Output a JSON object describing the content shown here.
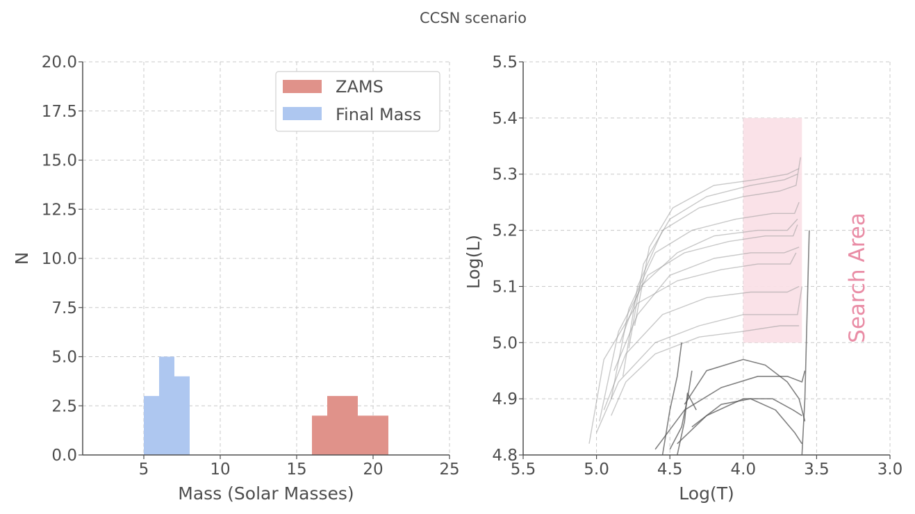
{
  "suptitle": "CCSN scenario",
  "colors": {
    "zams": "#e0928a",
    "final_mass": "#aec7f0",
    "search_area": "#f9dfe6",
    "search_area_text": "#e98ca5",
    "track": "#9a9a9a",
    "track_dark": "#555555"
  },
  "chart_data": [
    {
      "type": "bar",
      "subtype": "histogram",
      "xlabel": "Mass (Solar Masses)",
      "ylabel": "N",
      "xlim": [
        1,
        25
      ],
      "ylim": [
        0,
        20
      ],
      "xticks": [
        5,
        10,
        15,
        20,
        25
      ],
      "xtick_labels": [
        "5",
        "10",
        "15",
        "20",
        "25"
      ],
      "yticks": [
        0,
        2.5,
        5,
        7.5,
        10,
        12.5,
        15,
        17.5,
        20
      ],
      "ytick_labels": [
        "0.0",
        "2.5",
        "5.0",
        "7.5",
        "10.0",
        "12.5",
        "15.0",
        "17.5",
        "20.0"
      ],
      "grid": true,
      "legend": "top-right",
      "series": [
        {
          "name": "ZAMS",
          "color": "#e0928a",
          "bins": [
            {
              "x0": 16,
              "x1": 17,
              "count": 2
            },
            {
              "x0": 17,
              "x1": 18,
              "count": 3
            },
            {
              "x0": 18,
              "x1": 19,
              "count": 3
            },
            {
              "x0": 19,
              "x1": 20,
              "count": 2
            },
            {
              "x0": 20,
              "x1": 21,
              "count": 2
            }
          ]
        },
        {
          "name": "Final Mass",
          "color": "#aec7f0",
          "bins": [
            {
              "x0": 5,
              "x1": 6,
              "count": 3
            },
            {
              "x0": 6,
              "x1": 7,
              "count": 5
            },
            {
              "x0": 7,
              "x1": 8,
              "count": 4
            }
          ]
        }
      ]
    },
    {
      "type": "line",
      "xlabel": "Log(T)",
      "ylabel": "Log(L)",
      "xlim": [
        5.5,
        3.0
      ],
      "ylim": [
        4.8,
        5.5
      ],
      "x_inverted": true,
      "xticks": [
        5.5,
        5.0,
        4.5,
        4.0,
        3.5,
        3.0
      ],
      "xtick_labels": [
        "5.5",
        "5.0",
        "4.5",
        "4.0",
        "3.5",
        "3.0"
      ],
      "yticks": [
        4.8,
        4.9,
        5.0,
        5.1,
        5.2,
        5.3,
        5.4,
        5.5
      ],
      "ytick_labels": [
        "4.8",
        "4.9",
        "5.0",
        "5.1",
        "5.2",
        "5.3",
        "5.4",
        "5.5"
      ],
      "grid": true,
      "search_area": {
        "x_range": [
          4.0,
          3.6
        ],
        "y_range": [
          5.0,
          5.4
        ],
        "label": "Search Area"
      },
      "series": [
        {
          "x": [
            5.05,
            4.95,
            4.72,
            4.45,
            4.15,
            3.9,
            3.68,
            3.64
          ],
          "y": [
            4.82,
            4.97,
            5.07,
            5.11,
            5.13,
            5.14,
            5.14,
            5.16
          ]
        },
        {
          "x": [
            4.98,
            4.85,
            4.65,
            4.4,
            4.1,
            3.85,
            3.66,
            3.63
          ],
          "y": [
            4.86,
            5.02,
            5.12,
            5.16,
            5.18,
            5.19,
            5.19,
            5.21
          ]
        },
        {
          "x": [
            4.9,
            4.78,
            4.6,
            4.35,
            4.05,
            3.8,
            3.65,
            3.62
          ],
          "y": [
            4.9,
            5.06,
            5.16,
            5.2,
            5.22,
            5.23,
            5.23,
            5.25
          ]
        },
        {
          "x": [
            4.82,
            4.72,
            4.55,
            4.3,
            4.0,
            3.75,
            3.64,
            3.61
          ],
          "y": [
            4.94,
            5.1,
            5.2,
            5.24,
            5.26,
            5.27,
            5.28,
            5.33
          ]
        },
        {
          "x": [
            4.78,
            4.68,
            4.5,
            4.25,
            3.95,
            3.72,
            3.63
          ],
          "y": [
            4.99,
            5.14,
            5.22,
            5.26,
            5.28,
            5.29,
            5.3
          ]
        },
        {
          "x": [
            4.74,
            4.64,
            4.48,
            4.2,
            3.92,
            3.7,
            3.62
          ],
          "y": [
            5.03,
            5.17,
            5.24,
            5.28,
            5.29,
            5.3,
            5.31
          ]
        },
        {
          "x": [
            5.0,
            4.85,
            4.6,
            4.3,
            4.0,
            3.75,
            3.63,
            3.6
          ],
          "y": [
            4.84,
            4.93,
            5.0,
            5.03,
            5.05,
            5.05,
            5.05,
            5.1
          ]
        },
        {
          "x": [
            4.95,
            4.8,
            4.55,
            4.25,
            3.95,
            3.7,
            3.62
          ],
          "y": [
            4.88,
            4.98,
            5.05,
            5.08,
            5.09,
            5.09,
            5.1
          ]
        },
        {
          "x": [
            4.88,
            4.72,
            4.5,
            4.2,
            3.95,
            3.72,
            3.62
          ],
          "y": [
            4.95,
            5.05,
            5.12,
            5.15,
            5.16,
            5.16,
            5.17
          ]
        },
        {
          "x": [
            4.84,
            4.7,
            4.45,
            4.2,
            3.9,
            3.7,
            3.63
          ],
          "y": [
            5.0,
            5.1,
            5.16,
            5.19,
            5.2,
            5.2,
            5.22
          ]
        },
        {
          "x": [
            4.9,
            4.8,
            4.6,
            4.3,
            4.0,
            3.75,
            3.62
          ],
          "y": [
            4.87,
            4.93,
            4.98,
            5.01,
            5.02,
            5.03,
            5.03
          ]
        },
        {
          "x": [
            4.6,
            4.4,
            4.15,
            3.9,
            3.7,
            3.6,
            3.58
          ],
          "y": [
            4.81,
            4.88,
            4.92,
            4.94,
            4.94,
            4.93,
            4.95
          ]
        },
        {
          "x": [
            4.45,
            4.25,
            4.0,
            3.8,
            3.66,
            3.6
          ],
          "y": [
            4.82,
            4.87,
            4.9,
            4.9,
            4.88,
            4.87
          ]
        },
        {
          "x": [
            4.4,
            4.25,
            4.0,
            3.85,
            3.7,
            3.62,
            3.58
          ],
          "y": [
            4.89,
            4.95,
            4.97,
            4.96,
            4.93,
            4.9,
            4.86
          ]
        },
        {
          "x": [
            4.35,
            4.15,
            3.95,
            3.78,
            3.65,
            3.6
          ],
          "y": [
            4.85,
            4.89,
            4.9,
            4.88,
            4.84,
            4.82
          ]
        },
        {
          "x": [
            4.5,
            4.42,
            4.38,
            4.35
          ],
          "y": [
            4.81,
            4.85,
            4.9,
            4.95
          ]
        },
        {
          "x": [
            4.45,
            4.4,
            4.38,
            4.32
          ],
          "y": [
            4.8,
            4.86,
            4.91,
            4.88
          ]
        },
        {
          "x": [
            4.55,
            4.5,
            4.45,
            4.42
          ],
          "y": [
            4.8,
            4.88,
            4.94,
            5.0
          ]
        },
        {
          "x": [
            3.6,
            3.58,
            3.57,
            3.56,
            3.55
          ],
          "y": [
            4.8,
            4.9,
            5.0,
            5.1,
            5.2
          ]
        }
      ]
    }
  ]
}
